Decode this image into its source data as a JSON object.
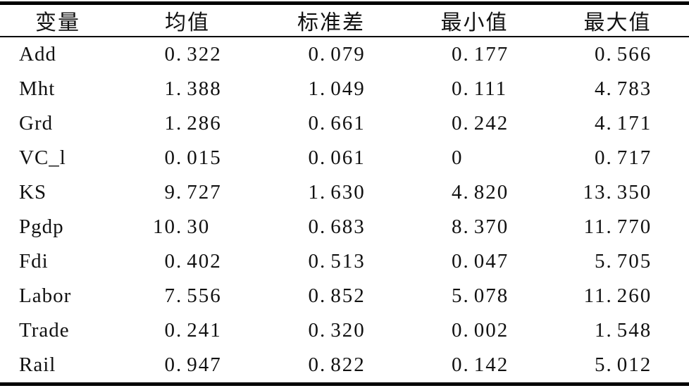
{
  "table": {
    "columns": [
      "变量",
      "均值",
      "标准差",
      "最小值",
      "最大值"
    ],
    "rows": [
      {
        "variable": "Add",
        "values": [
          "0.322",
          "0.079",
          "0.177",
          "0.566"
        ]
      },
      {
        "variable": "Mht",
        "values": [
          "1.388",
          "1.049",
          "0.111",
          "4.783"
        ]
      },
      {
        "variable": "Grd",
        "values": [
          "1.286",
          "0.661",
          "0.242",
          "4.171"
        ]
      },
      {
        "variable": "VC_l",
        "values": [
          "0.015",
          "0.061",
          "0",
          "0.717"
        ]
      },
      {
        "variable": "KS",
        "values": [
          "9.727",
          "1.630",
          "4.820",
          "13.350"
        ]
      },
      {
        "variable": "Pgdp",
        "values": [
          "10.30",
          "0.683",
          "8.370",
          "11.770"
        ]
      },
      {
        "variable": "Fdi",
        "values": [
          "0.402",
          "0.513",
          "0.047",
          "5.705"
        ]
      },
      {
        "variable": "Labor",
        "values": [
          "7.556",
          "0.852",
          "5.078",
          "11.260"
        ]
      },
      {
        "variable": "Trade",
        "values": [
          "0.241",
          "0.320",
          "0.002",
          "1.548"
        ]
      },
      {
        "variable": "Rail",
        "values": [
          "0.947",
          "0.822",
          "0.142",
          "5.012"
        ]
      }
    ]
  },
  "colors": {
    "background": "#ffffff",
    "text": "#111111",
    "rule": "#000000"
  }
}
